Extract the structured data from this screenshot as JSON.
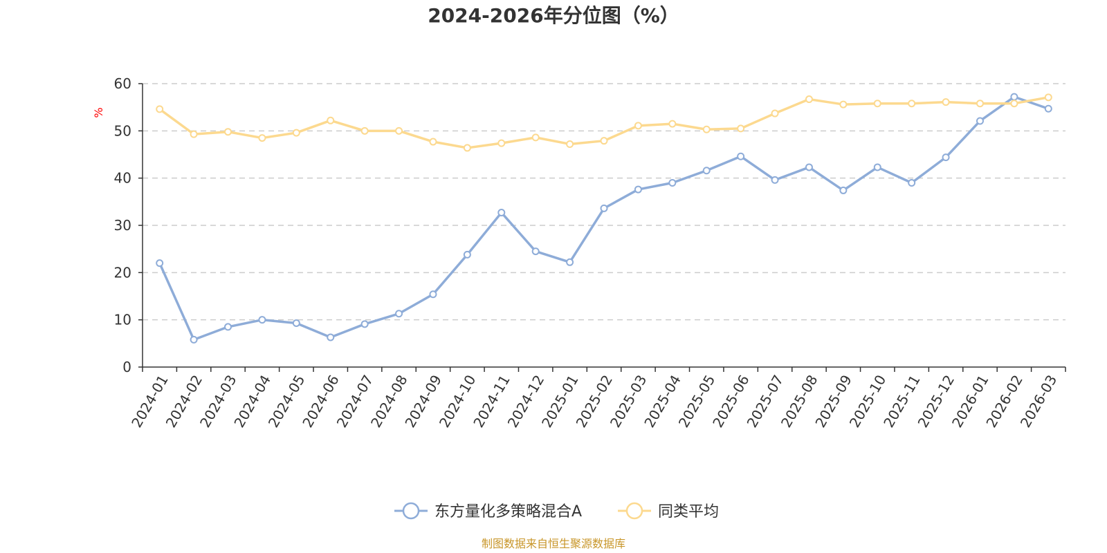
{
  "chart_data": {
    "type": "line",
    "title": "2024-2026年分位图（%）",
    "ylabel": "%",
    "xlabel": "",
    "ylim": [
      0,
      60
    ],
    "yticks": [
      0,
      10,
      20,
      30,
      40,
      50,
      60
    ],
    "grid": true,
    "legend_position": "bottom-center",
    "categories": [
      "2024-01",
      "2024-02",
      "2024-03",
      "2024-04",
      "2024-05",
      "2024-06",
      "2024-07",
      "2024-08",
      "2024-09",
      "2024-10",
      "2024-11",
      "2024-12",
      "2025-01",
      "2025-02",
      "2025-03",
      "2025-04",
      "2025-05",
      "2025-06",
      "2025-07",
      "2025-08",
      "2025-09",
      "2025-10",
      "2025-11",
      "2025-12",
      "2026-01",
      "2026-02",
      "2026-03"
    ],
    "series": [
      {
        "name": "东方量化多策略混合A",
        "color": "#8eacd8",
        "values": [
          22,
          5.8,
          8.5,
          10,
          9.3,
          6.3,
          9.1,
          11.3,
          15.4,
          23.8,
          32.7,
          24.5,
          22.2,
          33.6,
          37.6,
          39,
          41.6,
          44.6,
          39.6,
          42.3,
          37.4,
          42.3,
          39,
          44.4,
          52.1,
          57.2,
          54.7
        ]
      },
      {
        "name": "同类平均",
        "color": "#fcd98f",
        "values": [
          54.6,
          49.3,
          49.8,
          48.5,
          49.6,
          52.2,
          50,
          50,
          47.7,
          46.4,
          47.4,
          48.6,
          47.2,
          47.9,
          51.1,
          51.5,
          50.3,
          50.5,
          53.7,
          56.7,
          55.6,
          55.8,
          55.8,
          56.1,
          55.8,
          55.8,
          57.1
        ]
      }
    ]
  },
  "footer": {
    "source": "制图数据来自恒生聚源数据库"
  }
}
